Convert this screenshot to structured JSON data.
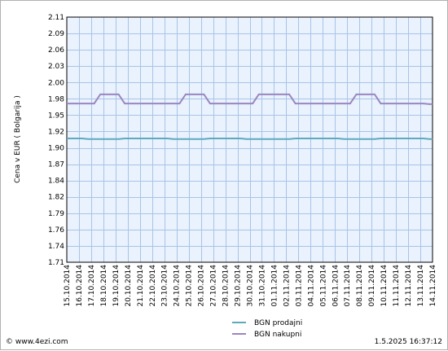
{
  "footer": {
    "copyright": "© www.4ezi.com",
    "timestamp": "1.5.2025 16:37:12"
  },
  "chart_data": {
    "type": "line",
    "ylabel": "Cena v EUR  ( Bolgarija )",
    "xlabel": "",
    "ylim": [
      1.71,
      2.11
    ],
    "yticks": [
      "2.11",
      "2.09",
      "2.06",
      "2.03",
      "2.00",
      "1.98",
      "1.95",
      "1.92",
      "1.90",
      "1.87",
      "1.84",
      "1.82",
      "1.79",
      "1.76",
      "1.74",
      "1.71"
    ],
    "categories": [
      "15.10.2014",
      "16.10.2014",
      "17.10.2014",
      "18.10.2014",
      "19.10.2014",
      "20.10.2014",
      "21.10.2014",
      "22.10.2014",
      "23.10.2014",
      "24.10.2014",
      "25.10.2014",
      "26.10.2014",
      "27.10.2014",
      "28.10.2014",
      "29.10.2014",
      "30.10.2014",
      "31.10.2014",
      "01.11.2014",
      "02.11.2014",
      "03.11.2014",
      "04.11.2014",
      "05.11.2014",
      "06.11.2014",
      "07.11.2014",
      "08.11.2014",
      "09.11.2014",
      "10.11.2014",
      "11.11.2014",
      "12.11.2014",
      "13.11.2014",
      "14.11.2014"
    ],
    "grid": true,
    "legend_position": "bottom",
    "series": [
      {
        "name": "BGN prodajni",
        "color": "#5fa9c0",
        "values": [
          1.912,
          1.912,
          1.911,
          1.911,
          1.911,
          1.912,
          1.912,
          1.912,
          1.912,
          1.911,
          1.911,
          1.911,
          1.912,
          1.912,
          1.912,
          1.911,
          1.911,
          1.911,
          1.911,
          1.912,
          1.912,
          1.912,
          1.912,
          1.911,
          1.911,
          1.911,
          1.912,
          1.912,
          1.912,
          1.912,
          1.911
        ]
      },
      {
        "name": "BGN nakupni",
        "color": "#9a86c0",
        "values": [
          1.969,
          1.969,
          1.969,
          1.984,
          1.984,
          1.969,
          1.969,
          1.969,
          1.969,
          1.969,
          1.984,
          1.984,
          1.969,
          1.969,
          1.969,
          1.969,
          1.984,
          1.984,
          1.984,
          1.969,
          1.969,
          1.969,
          1.969,
          1.969,
          1.984,
          1.984,
          1.969,
          1.969,
          1.969,
          1.969,
          1.968
        ]
      }
    ]
  }
}
